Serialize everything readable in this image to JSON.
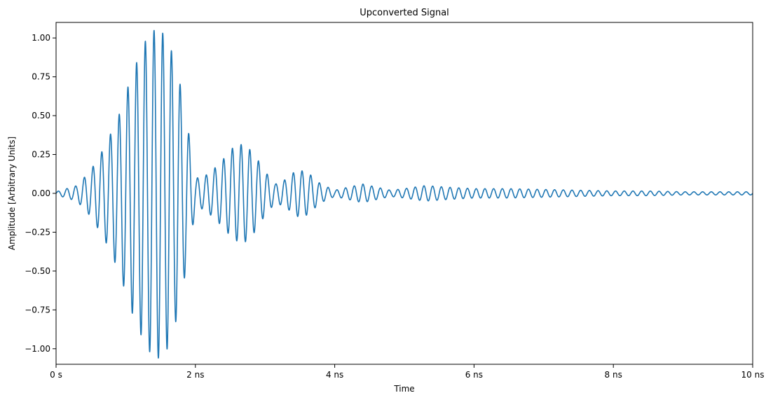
{
  "chart_data": {
    "type": "line",
    "title": "Upconverted Signal",
    "xlabel": "Time",
    "ylabel": "Amplitude [Arbitrary Units]",
    "xlim": [
      0,
      10
    ],
    "ylim": [
      -1.1,
      1.1
    ],
    "x_unit": "ns",
    "x_ticks": [
      0,
      2,
      4,
      6,
      8,
      10
    ],
    "x_tick_labels": [
      "0 s",
      "2 ns",
      "4 ns",
      "6 ns",
      "8 ns",
      "10 ns"
    ],
    "y_ticks": [
      -1.0,
      -0.75,
      -0.5,
      -0.25,
      0.0,
      0.25,
      0.5,
      0.75,
      1.0
    ],
    "y_tick_labels": [
      "−1.00",
      "−0.75",
      "−0.50",
      "−0.25",
      "0.00",
      "0.25",
      "0.50",
      "0.75",
      "1.00"
    ],
    "grid": false,
    "legend": "none",
    "line_color": "#1f77b4",
    "carrier_frequency_ghz": 8,
    "series": [
      {
        "envelope_peaks": {
          "x": [
            0.0,
            0.3,
            0.5,
            0.7,
            0.9,
            1.1,
            1.3,
            1.45,
            1.6,
            1.75,
            1.9,
            2.0,
            2.1,
            2.25,
            2.4,
            2.55,
            2.7,
            2.85,
            3.0,
            3.15,
            3.3,
            3.45,
            3.6,
            3.8,
            4.0,
            4.2,
            4.4,
            4.6,
            4.8,
            5.0,
            5.3,
            5.6,
            6.0,
            6.5,
            7.0,
            7.5,
            8.0,
            8.5,
            9.0,
            9.5,
            10.0
          ],
          "y": [
            0.01,
            0.05,
            0.15,
            0.3,
            0.5,
            0.78,
            1.0,
            1.07,
            1.0,
            0.78,
            0.4,
            0.1,
            0.1,
            0.15,
            0.22,
            0.3,
            0.32,
            0.25,
            0.14,
            0.06,
            0.09,
            0.15,
            0.14,
            0.06,
            0.02,
            0.04,
            0.06,
            0.04,
            0.02,
            0.03,
            0.05,
            0.04,
            0.03,
            0.03,
            0.025,
            0.02,
            0.015,
            0.015,
            0.01,
            0.01,
            0.01
          ]
        }
      }
    ]
  }
}
